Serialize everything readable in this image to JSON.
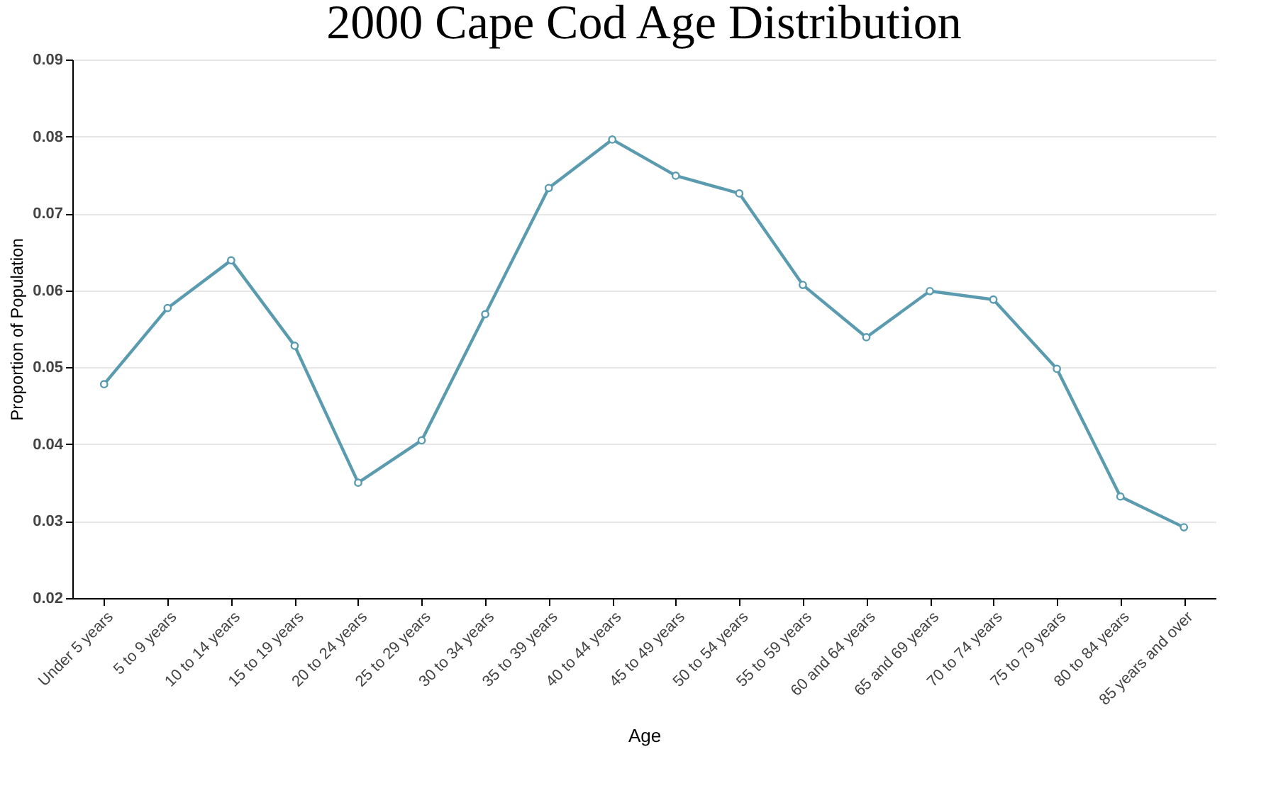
{
  "chart_data": {
    "type": "line",
    "title": "2000 Cape Cod Age Distribution",
    "xlabel": "Age",
    "ylabel": "Proportion of Population",
    "categories": [
      "Under 5 years",
      "5 to 9 years",
      "10 to 14 years",
      "15 to 19 years",
      "20 to 24 years",
      "25 to 29 years",
      "30 to 34 years",
      "35 to 39 years",
      "40 to 44 years",
      "45 to 49 years",
      "50 to 54 years",
      "55 to 59 years",
      "60 and 64 years",
      "65 and 69 years",
      "70 to 74 years",
      "75 to 79 years",
      "80 to 84 years",
      "85 years and over"
    ],
    "series": [
      {
        "color": "#5b9bb0",
        "values": [
          0.0478,
          0.0577,
          0.0639,
          0.0528,
          0.035,
          0.0405,
          0.0569,
          0.0733,
          0.0796,
          0.0749,
          0.0726,
          0.0607,
          0.0539,
          0.0599,
          0.0588,
          0.0498,
          0.0332,
          0.0292
        ]
      }
    ],
    "ylim": [
      0.02,
      0.09
    ],
    "yticks": [
      {
        "value": 0.02,
        "label": "0.02"
      },
      {
        "value": 0.03,
        "label": "0.03"
      },
      {
        "value": 0.04,
        "label": "0.04"
      },
      {
        "value": 0.05,
        "label": "0.05"
      },
      {
        "value": 0.06,
        "label": "0.06"
      },
      {
        "value": 0.07,
        "label": "0.07"
      },
      {
        "value": 0.08,
        "label": "0.08"
      },
      {
        "value": 0.09,
        "label": "0.09"
      }
    ],
    "grid": "y",
    "marker": "circle",
    "line_style": "solid"
  }
}
